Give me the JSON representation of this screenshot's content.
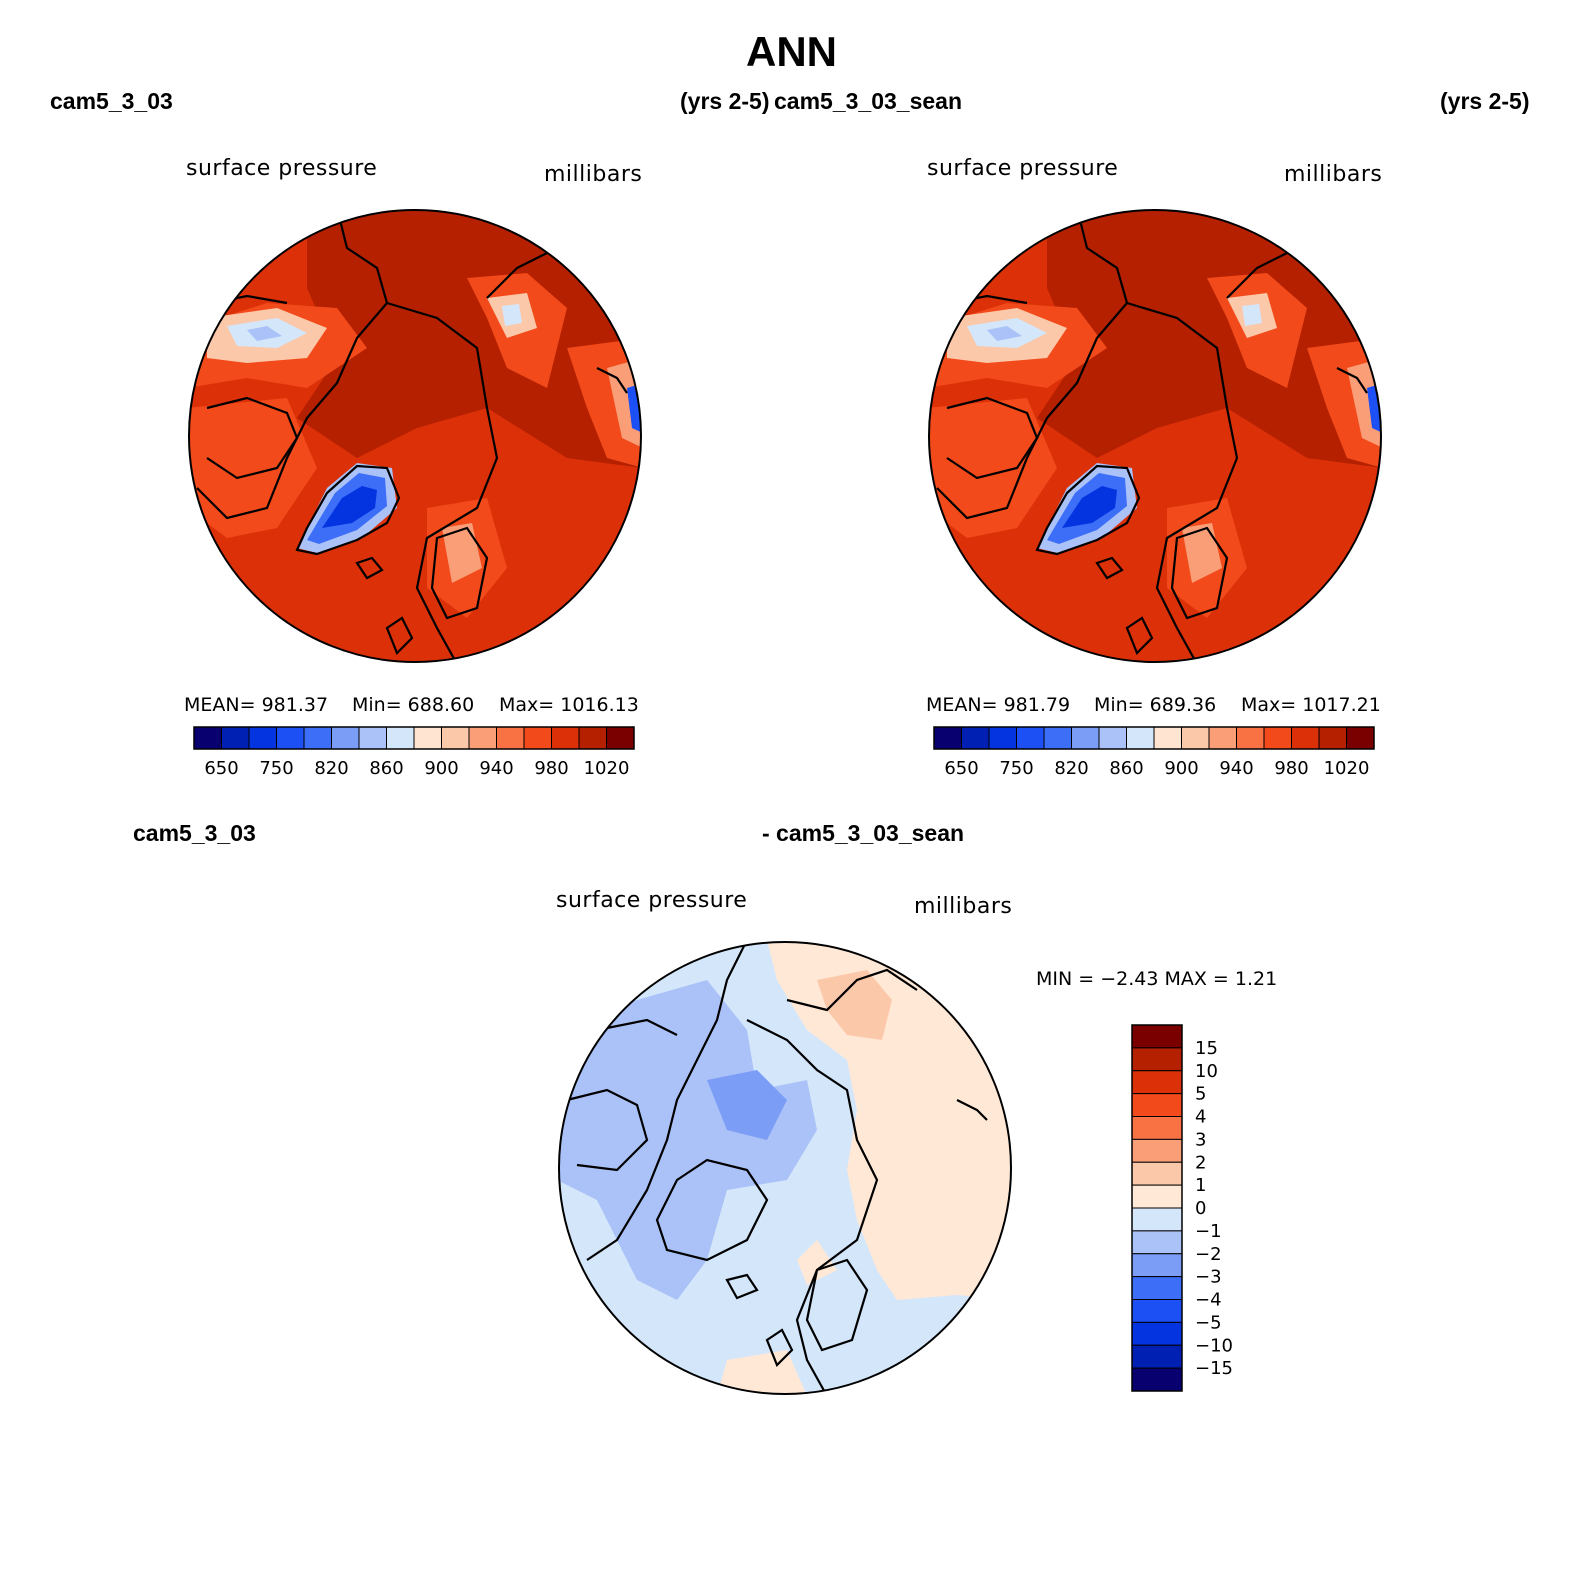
{
  "title": "ANN",
  "panels": [
    {
      "case_label": "cam5_3_03",
      "years": "(yrs 2-5)",
      "variable": "surface pressure",
      "units": "millibars",
      "stats": {
        "mean": "MEAN=  981.37",
        "min": "Min=  688.60",
        "max": "Max=  1016.13"
      },
      "colorbar_ticks": [
        "650",
        "750",
        "820",
        "860",
        "900",
        "940",
        "980",
        "1020"
      ]
    },
    {
      "case_label": "cam5_3_03_sean",
      "years": "(yrs 2-5)",
      "variable": "surface pressure",
      "units": "millibars",
      "stats": {
        "mean": "MEAN=  981.79",
        "min": "Min=  689.36",
        "max": "Max=  1017.21"
      },
      "colorbar_ticks": [
        "650",
        "750",
        "820",
        "860",
        "900",
        "940",
        "980",
        "1020"
      ]
    }
  ],
  "difference": {
    "left_label": "cam5_3_03",
    "right_label": "- cam5_3_03_sean",
    "variable": "surface pressure",
    "units": "millibars",
    "minmax": "MIN =   −2.43 MAX =     1.21",
    "colorbar_ticks": [
      "15",
      "10",
      "5",
      "4",
      "3",
      "2",
      "1",
      "0",
      "−1",
      "−2",
      "−3",
      "−4",
      "−5",
      "−10",
      "−15"
    ]
  },
  "colors": {
    "abs_scale": [
      "#08006e",
      "#0020b4",
      "#0434e0",
      "#1c50f5",
      "#3c6ef8",
      "#7c9df6",
      "#aac2f8",
      "#d4e6fa",
      "#ffe4d2",
      "#fcc8aa",
      "#fa9e78",
      "#f87244",
      "#f24a1a",
      "#dc3008",
      "#b42000",
      "#7a0000"
    ],
    "diff_scale": [
      "#7a0000",
      "#b42000",
      "#dc3008",
      "#f24a1a",
      "#f87244",
      "#fa9e78",
      "#fcc8aa",
      "#ffe8d6",
      "#d4e6fa",
      "#aac2f8",
      "#7c9df6",
      "#3c6ef8",
      "#1c50f5",
      "#0434e0",
      "#0020b4",
      "#08006e"
    ]
  }
}
